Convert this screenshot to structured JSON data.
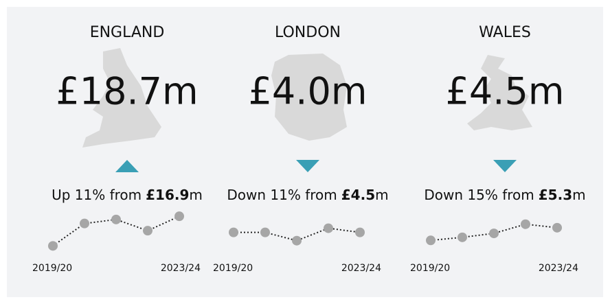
{
  "color": "#3a9fb5",
  "panels": [
    {
      "name": "ENGLAND",
      "value": "£18.7m",
      "direction": "up",
      "change": {
        "text": "Up 11% from",
        "previous": "£16.9",
        "unit": "m"
      },
      "chart_data": {
        "type": "line",
        "categories": [
          "2019/20",
          null,
          null,
          null,
          "2023/24"
        ],
        "values": [
          15.0,
          17.8,
          18.3,
          16.9,
          18.7
        ],
        "ylim": [
          14,
          20
        ],
        "color": "#a6a6a6"
      }
    },
    {
      "name": "LONDON",
      "value": "£4.0m",
      "direction": "down",
      "change": {
        "text": "Down 11% from",
        "previous": "£4.5",
        "unit": "m"
      },
      "chart_data": {
        "type": "line",
        "categories": [
          "2019/20",
          null,
          null,
          null,
          "2023/24"
        ],
        "values": [
          4.0,
          4.0,
          3.0,
          4.5,
          4.0
        ],
        "ylim": [
          1.4,
          7.2
        ],
        "color": "#a6a6a6"
      }
    },
    {
      "name": "WALES",
      "value": "£4.5m",
      "direction": "down",
      "change": {
        "text": "Down 15% from",
        "previous": "£5.3",
        "unit": "m"
      },
      "chart_data": {
        "type": "line",
        "categories": [
          "2019/20",
          null,
          null,
          null,
          "2023/24"
        ],
        "values": [
          1.6,
          2.3,
          3.2,
          5.3,
          4.5
        ],
        "ylim": [
          -1.5,
          9.5
        ],
        "color": "#a6a6a6"
      }
    }
  ]
}
